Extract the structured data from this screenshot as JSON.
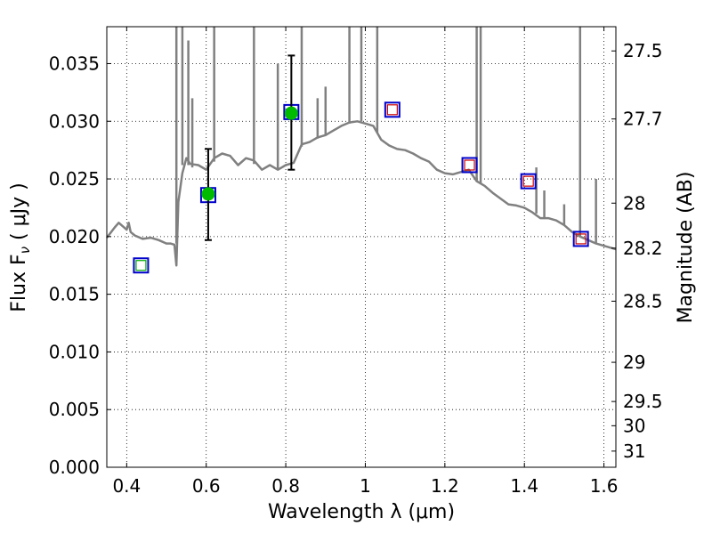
{
  "chart_data": {
    "type": "line",
    "xlabel": "Wavelength  λ (μm)",
    "ylabel": "Flux  F",
    "ylabel_sub": "ν",
    "ylabel_unit": "  ( μJy )",
    "y2label": "Magnitude (AB)",
    "xlim": [
      0.35,
      1.63
    ],
    "ylim": [
      0.0,
      0.0382
    ],
    "grid": true,
    "colors": {
      "spectrum": "#808080",
      "detection": "#00bb00",
      "model_box": "#0000cc",
      "upper_limit": "#cc0000",
      "green_box": "#00aa00",
      "errorbar": "#000000"
    },
    "x_ticks": [
      {
        "v": 0.4,
        "label": "0.4"
      },
      {
        "v": 0.6,
        "label": "0.6"
      },
      {
        "v": 0.8,
        "label": "0.8"
      },
      {
        "v": 1.0,
        "label": "1"
      },
      {
        "v": 1.2,
        "label": "1.2"
      },
      {
        "v": 1.4,
        "label": "1.4"
      },
      {
        "v": 1.6,
        "label": "1.6"
      }
    ],
    "y_ticks": [
      {
        "v": 0.0,
        "label": "0.000"
      },
      {
        "v": 0.005,
        "label": "0.005"
      },
      {
        "v": 0.01,
        "label": "0.010"
      },
      {
        "v": 0.015,
        "label": "0.015"
      },
      {
        "v": 0.02,
        "label": "0.020"
      },
      {
        "v": 0.025,
        "label": "0.025"
      },
      {
        "v": 0.03,
        "label": "0.030"
      },
      {
        "v": 0.035,
        "label": "0.035"
      }
    ],
    "y2_ticks": [
      {
        "flux": 0.0361,
        "label": "27.5"
      },
      {
        "flux": 0.0302,
        "label": "27.7"
      },
      {
        "flux": 0.0229,
        "label": "28"
      },
      {
        "flux": 0.019,
        "label": "28.2"
      },
      {
        "flux": 0.0144,
        "label": "28.5"
      },
      {
        "flux": 0.0091,
        "label": "29"
      },
      {
        "flux": 0.0057,
        "label": "29.5"
      },
      {
        "flux": 0.0036,
        "label": "30"
      },
      {
        "flux": 0.0014,
        "label": "31"
      }
    ],
    "spectrum": {
      "x": [
        0.35,
        0.37,
        0.38,
        0.39,
        0.4,
        0.405,
        0.41,
        0.42,
        0.44,
        0.46,
        0.48,
        0.5,
        0.51,
        0.52,
        0.525,
        0.53,
        0.54,
        0.55,
        0.56,
        0.58,
        0.6,
        0.62,
        0.64,
        0.66,
        0.68,
        0.7,
        0.72,
        0.74,
        0.76,
        0.78,
        0.8,
        0.82,
        0.84,
        0.86,
        0.88,
        0.9,
        0.92,
        0.94,
        0.96,
        0.98,
        1.0,
        1.02,
        1.04,
        1.06,
        1.08,
        1.1,
        1.12,
        1.14,
        1.16,
        1.18,
        1.2,
        1.22,
        1.24,
        1.26,
        1.28,
        1.3,
        1.32,
        1.34,
        1.36,
        1.38,
        1.4,
        1.42,
        1.44,
        1.46,
        1.48,
        1.5,
        1.52,
        1.54,
        1.56,
        1.58,
        1.6,
        1.63
      ],
      "y": [
        0.0199,
        0.0208,
        0.0212,
        0.0209,
        0.0206,
        0.0212,
        0.0204,
        0.0201,
        0.0198,
        0.0199,
        0.0197,
        0.0194,
        0.0194,
        0.0193,
        0.0175,
        0.023,
        0.0255,
        0.0268,
        0.0263,
        0.0262,
        0.0258,
        0.0268,
        0.0272,
        0.027,
        0.0262,
        0.0268,
        0.0266,
        0.0258,
        0.0262,
        0.0258,
        0.0262,
        0.0264,
        0.028,
        0.0282,
        0.0286,
        0.0288,
        0.0292,
        0.0296,
        0.0299,
        0.03,
        0.0298,
        0.0296,
        0.0284,
        0.0279,
        0.0276,
        0.0275,
        0.0272,
        0.0268,
        0.0265,
        0.0258,
        0.0255,
        0.0254,
        0.0256,
        0.0258,
        0.0248,
        0.0244,
        0.0238,
        0.0233,
        0.0228,
        0.0227,
        0.0225,
        0.0221,
        0.0216,
        0.0216,
        0.0214,
        0.021,
        0.0204,
        0.02,
        0.0197,
        0.0194,
        0.0192,
        0.0189
      ]
    },
    "emission_lines": [
      {
        "x": 0.525,
        "from": 0.0194,
        "to": 0.0385
      },
      {
        "x": 0.54,
        "from": 0.0262,
        "to": 0.0385
      },
      {
        "x": 0.555,
        "from": 0.0262,
        "to": 0.037
      },
      {
        "x": 0.565,
        "from": 0.026,
        "to": 0.032
      },
      {
        "x": 0.62,
        "from": 0.0265,
        "to": 0.0385
      },
      {
        "x": 0.72,
        "from": 0.0263,
        "to": 0.0385
      },
      {
        "x": 0.78,
        "from": 0.0258,
        "to": 0.035
      },
      {
        "x": 0.84,
        "from": 0.0278,
        "to": 0.0385
      },
      {
        "x": 0.88,
        "from": 0.0285,
        "to": 0.032
      },
      {
        "x": 0.9,
        "from": 0.0288,
        "to": 0.033
      },
      {
        "x": 0.96,
        "from": 0.0298,
        "to": 0.0385
      },
      {
        "x": 0.99,
        "from": 0.03,
        "to": 0.0385
      },
      {
        "x": 1.03,
        "from": 0.029,
        "to": 0.0385
      },
      {
        "x": 1.28,
        "from": 0.0248,
        "to": 0.0385
      },
      {
        "x": 1.29,
        "from": 0.0246,
        "to": 0.0385
      },
      {
        "x": 1.43,
        "from": 0.022,
        "to": 0.026
      },
      {
        "x": 1.45,
        "from": 0.0216,
        "to": 0.024
      },
      {
        "x": 1.5,
        "from": 0.021,
        "to": 0.0228
      },
      {
        "x": 1.54,
        "from": 0.02,
        "to": 0.0385
      },
      {
        "x": 1.58,
        "from": 0.0194,
        "to": 0.025
      }
    ],
    "model_boxes": [
      {
        "x": 0.436,
        "y": 0.0175
      },
      {
        "x": 0.605,
        "y": 0.0236
      },
      {
        "x": 0.814,
        "y": 0.0308
      },
      {
        "x": 1.068,
        "y": 0.031
      },
      {
        "x": 1.262,
        "y": 0.0262
      },
      {
        "x": 1.41,
        "y": 0.0248
      },
      {
        "x": 1.542,
        "y": 0.0198
      }
    ],
    "detections": [
      {
        "x": 0.605,
        "y": 0.0237,
        "err_low": 0.0197,
        "err_high": 0.0276
      },
      {
        "x": 0.814,
        "y": 0.0307,
        "err_low": 0.0258,
        "err_high": 0.0357
      }
    ],
    "upper_limits_red": [
      {
        "x": 1.068,
        "y": 0.031
      },
      {
        "x": 1.262,
        "y": 0.0262
      },
      {
        "x": 1.41,
        "y": 0.0248
      },
      {
        "x": 1.542,
        "y": 0.0198
      }
    ],
    "upper_limits_green": [
      {
        "x": 0.436,
        "y": 0.0175
      }
    ]
  }
}
